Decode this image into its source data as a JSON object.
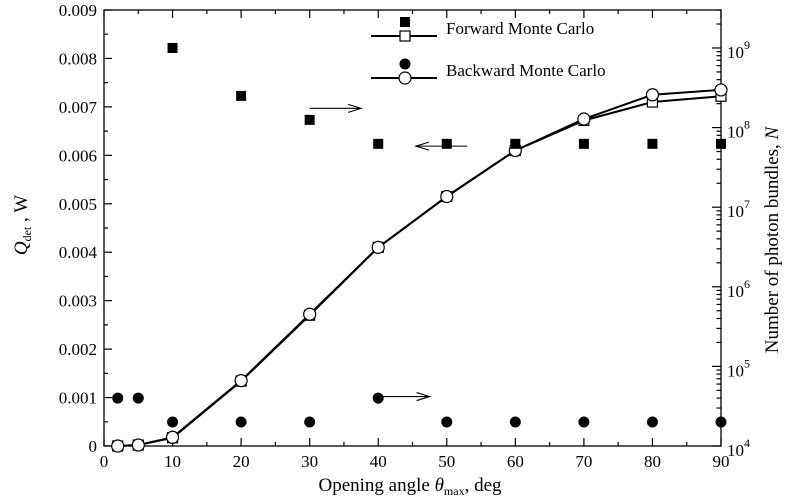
{
  "chart_data": {
    "type": "line",
    "xlabel": {
      "pre": "Opening angle ",
      "sym": "θ",
      "sub": "max",
      "post": ", deg"
    },
    "ylabel_left": {
      "sym": "Q",
      "sub": "det",
      "post": " , W"
    },
    "ylabel_right": {
      "pre": "Number of photon bundles, ",
      "sym": "N"
    },
    "xlim": [
      0,
      90
    ],
    "ylim_left": [
      0,
      0.009
    ],
    "ylim_right": [
      10000,
      3000000000
    ],
    "right_axis_scale": "log",
    "x_ticks": [
      "0",
      "10",
      "20",
      "30",
      "40",
      "50",
      "60",
      "70",
      "80",
      "90"
    ],
    "y_left_ticks": [
      "0",
      "0.001",
      "0.002",
      "0.003",
      "0.004",
      "0.005",
      "0.006",
      "0.007",
      "0.008",
      "0.009"
    ],
    "y_right_ticks": [
      {
        "base": "10",
        "exp": "4"
      },
      {
        "base": "10",
        "exp": "5"
      },
      {
        "base": "10",
        "exp": "6"
      },
      {
        "base": "10",
        "exp": "7"
      },
      {
        "base": "10",
        "exp": "8"
      },
      {
        "base": "10",
        "exp": "9"
      }
    ],
    "legend": {
      "placement": "top-right",
      "entries": [
        {
          "label": "Forward Monte Carlo",
          "bundle_marker": "filled-square",
          "q_marker": "open-square"
        },
        {
          "label": "Backward Monte Carlo",
          "bundle_marker": "filled-circle",
          "q_marker": "open-circle"
        }
      ]
    },
    "series": [
      {
        "name": "Forward Monte Carlo",
        "axis": "left",
        "marker": "open-square",
        "x": [
          2,
          5,
          10,
          20,
          30,
          40,
          50,
          60,
          70,
          80,
          90
        ],
        "y": [
          0.0,
          2e-05,
          0.00017,
          0.00134,
          0.0027,
          0.0041,
          0.00515,
          0.0061,
          0.00672,
          0.0071,
          0.00722
        ]
      },
      {
        "name": "Backward Monte Carlo",
        "axis": "left",
        "marker": "open-circle",
        "x": [
          2,
          5,
          10,
          20,
          30,
          40,
          50,
          60,
          70,
          80,
          90
        ],
        "y": [
          0.0,
          2e-05,
          0.00018,
          0.00135,
          0.00272,
          0.0041,
          0.00515,
          0.0061,
          0.00675,
          0.00725,
          0.00735
        ]
      },
      {
        "name": "Forward Monte Carlo",
        "axis": "right",
        "marker": "filled-square",
        "x": [
          10,
          20,
          30,
          40,
          50,
          60,
          70,
          80,
          90
        ],
        "y": [
          1000000000,
          250000000,
          125000000,
          62500000,
          62500000,
          62500000,
          62500000,
          62500000,
          62500000
        ]
      },
      {
        "name": "Backward Monte Carlo",
        "axis": "right",
        "marker": "filled-circle",
        "x": [
          2,
          5,
          10,
          20,
          30,
          40,
          50,
          60,
          70,
          80,
          90
        ],
        "y": [
          40000,
          40000,
          20000,
          20000,
          20000,
          40000,
          20000,
          20000,
          20000,
          20000,
          20000
        ]
      }
    ],
    "annotations": [
      {
        "type": "arrow",
        "direction": "right",
        "x_start": 30,
        "x_end": 37.5,
        "axis": "left",
        "y": 0.00697
      },
      {
        "type": "arrow",
        "direction": "left",
        "x_start": 53,
        "x_end": 45.5,
        "axis": "left",
        "y": 0.00619
      },
      {
        "type": "arrow",
        "direction": "right",
        "x_start": 40,
        "x_end": 47.5,
        "axis": "left",
        "y": 0.00102
      }
    ]
  }
}
